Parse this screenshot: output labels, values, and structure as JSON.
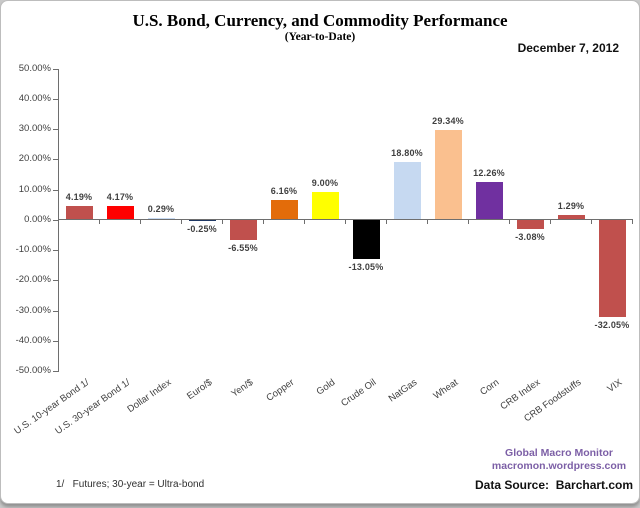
{
  "header": {
    "title": "U.S. Bond, Currency, and Commodity Performance",
    "subtitle": "(Year-to-Date)",
    "date": "December 7, 2012"
  },
  "chart_data": {
    "type": "bar",
    "title": "U.S. Bond, Currency, and Commodity Performance",
    "subtitle": "(Year-to-Date)",
    "categories": [
      "U.S. 10-year Bond 1/",
      "U.S. 30-year Bond 1/",
      "Dollar Index",
      "Euro/$",
      "Yen/$",
      "Copper",
      "Gold",
      "Crude Oil",
      "NatGas",
      "Wheat",
      "Corn",
      "CRB Index",
      "CRB Foodstuffs",
      "VIX"
    ],
    "values": [
      4.19,
      4.17,
      0.29,
      -0.25,
      -6.55,
      6.16,
      9.0,
      -13.05,
      18.8,
      29.34,
      12.26,
      -3.08,
      1.29,
      -32.05
    ],
    "value_labels": [
      "4.19%",
      "4.17%",
      "0.29%",
      "-0.25%",
      "-6.55%",
      "6.16%",
      "9.00%",
      "-13.05%",
      "18.80%",
      "29.34%",
      "12.26%",
      "-3.08%",
      "1.29%",
      "-32.05%"
    ],
    "bar_colors": [
      "#C0504D",
      "#FF0000",
      "#C6D9F1",
      "#1F3864",
      "#C0504D",
      "#E36C0A",
      "#FFFF00",
      "#000000",
      "#C6D9F1",
      "#FAC08F",
      "#7030A0",
      "#C0504D",
      "#C0504D",
      "#C0504D"
    ],
    "ylim": [
      -50,
      50
    ],
    "ytick_step": 10,
    "ytick_labels": [
      "50.00%",
      "40.00%",
      "30.00%",
      "20.00%",
      "10.00%",
      "0.00%",
      "-10.00%",
      "-20.00%",
      "-30.00%",
      "-40.00%",
      "-50.00%"
    ],
    "grid": false,
    "legend": "none",
    "axis_color": "#6e6e6e",
    "label_color": "#404040"
  },
  "footer": {
    "footnote": "1/   Futures; 30-year = Ultra-bond",
    "brand_line1": "Global Macro Monitor",
    "brand_line2": "macromon.wordpress.com",
    "brand_color": "#7C5FA6",
    "source": "Data Source:  Barchart.com"
  }
}
